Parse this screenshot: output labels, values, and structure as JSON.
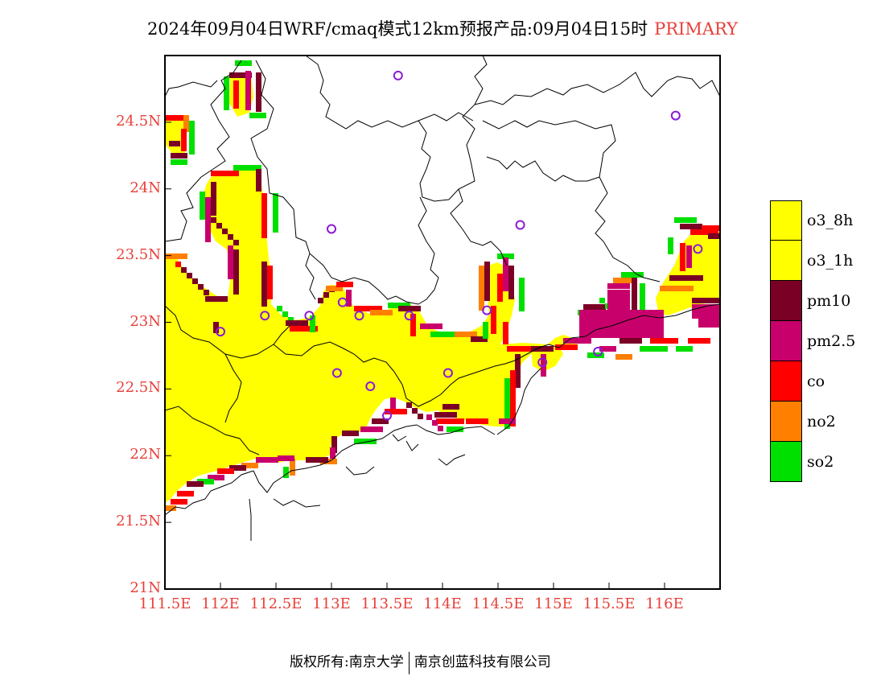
{
  "title": {
    "text": "2024年09月04日WRF/cmaq模式12km预报产品:09月04日15时",
    "tag": "PRIMARY"
  },
  "axes": {
    "x_ticks": [
      "111.5E",
      "112E",
      "112.5E",
      "113E",
      "113.5E",
      "114E",
      "114.5E",
      "115E",
      "115.5E",
      "116E"
    ],
    "y_ticks": [
      "21N",
      "21.5N",
      "22N",
      "22.5N",
      "23N",
      "23.5N",
      "24N",
      "24.5N"
    ],
    "lon_range": [
      111.5,
      116.5
    ],
    "lat_range": [
      21,
      25
    ],
    "label_color": "#e8403a"
  },
  "legend": {
    "items": [
      {
        "label": "o3_8h",
        "color": "#ffff00"
      },
      {
        "label": "o3_1h",
        "color": "#ffff00"
      },
      {
        "label": "pm10",
        "color": "#7a0026"
      },
      {
        "label": "pm2.5",
        "color": "#c8006c"
      },
      {
        "label": "co",
        "color": "#ff0000"
      },
      {
        "label": "no2",
        "color": "#ff8000"
      },
      {
        "label": "so2",
        "color": "#00e000"
      }
    ]
  },
  "stations": {
    "marker": "circle",
    "color": "#8a1bd8",
    "points": [
      [
        113.6,
        24.85
      ],
      [
        116.1,
        24.55
      ],
      [
        113.0,
        23.7
      ],
      [
        114.7,
        23.73
      ],
      [
        116.3,
        23.55
      ],
      [
        112.0,
        22.93
      ],
      [
        112.4,
        23.05
      ],
      [
        112.8,
        23.05
      ],
      [
        113.1,
        23.15
      ],
      [
        113.25,
        23.05
      ],
      [
        113.7,
        23.05
      ],
      [
        114.4,
        23.09
      ],
      [
        113.05,
        22.62
      ],
      [
        113.35,
        22.52
      ],
      [
        114.05,
        22.62
      ],
      [
        113.5,
        22.3
      ],
      [
        114.9,
        22.7
      ],
      [
        115.4,
        22.78
      ]
    ]
  },
  "footer": {
    "left": "版权所有:南京大学",
    "right": "南京创蓝科技有限公司"
  }
}
